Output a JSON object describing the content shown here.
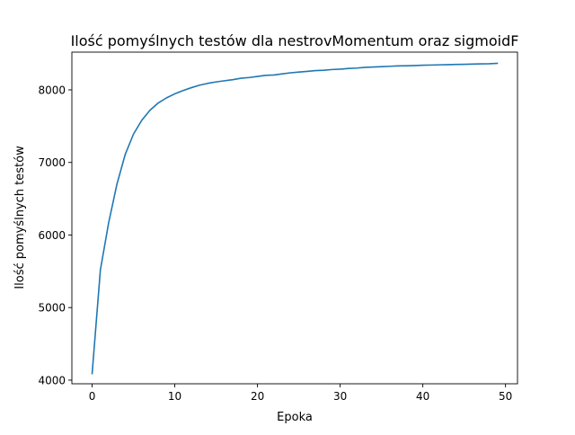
{
  "chart_data": {
    "type": "line",
    "title": "Ilość pomyślnych testów dla nestrovMomentum oraz sigmoidF",
    "xlabel": "Epoka",
    "ylabel": "Ilość pomyślnych testów",
    "xlim": [
      -2.45,
      51.45
    ],
    "ylim": [
      3950,
      8520
    ],
    "xticks": [
      0,
      10,
      20,
      30,
      40,
      50
    ],
    "yticks": [
      4000,
      5000,
      6000,
      7000,
      8000
    ],
    "grid": false,
    "line_color": "#1f77b4",
    "series": [
      {
        "x": [
          0,
          1,
          2,
          3,
          4,
          5,
          6,
          7,
          8,
          9,
          10,
          11,
          12,
          13,
          14,
          15,
          16,
          17,
          18,
          19,
          20,
          21,
          22,
          23,
          24,
          25,
          26,
          27,
          28,
          29,
          30,
          31,
          32,
          33,
          34,
          35,
          36,
          37,
          38,
          39,
          40,
          41,
          42,
          43,
          44,
          45,
          46,
          47,
          48,
          49
        ],
        "values": [
          4090,
          5520,
          6170,
          6700,
          7110,
          7390,
          7580,
          7720,
          7820,
          7890,
          7945,
          7990,
          8030,
          8065,
          8090,
          8110,
          8125,
          8140,
          8160,
          8170,
          8185,
          8200,
          8205,
          8220,
          8235,
          8245,
          8255,
          8265,
          8270,
          8280,
          8285,
          8295,
          8300,
          8310,
          8315,
          8320,
          8325,
          8330,
          8332,
          8335,
          8340,
          8342,
          8345,
          8347,
          8350,
          8352,
          8355,
          8358,
          8360,
          8365
        ]
      }
    ]
  }
}
